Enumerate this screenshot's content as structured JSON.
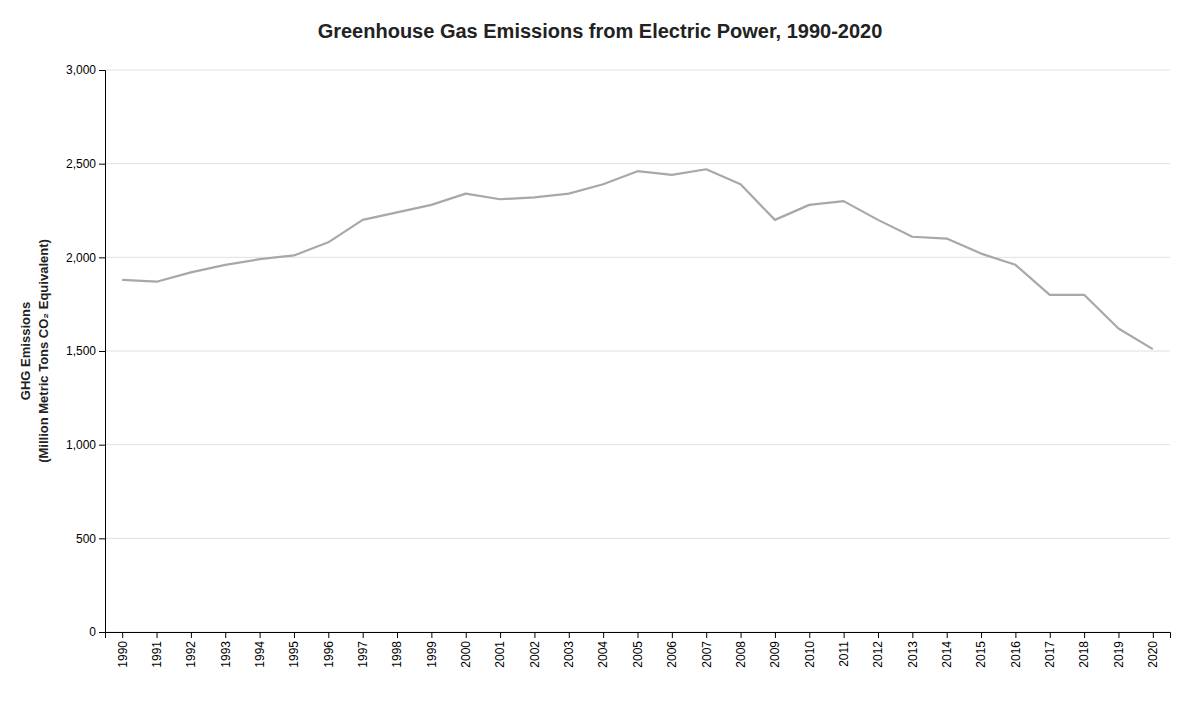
{
  "chart_data": {
    "type": "line",
    "title": "Greenhouse Gas Emissions from Electric Power, 1990-2020",
    "ylabel": [
      "GHG Emissions",
      "(Million Metric Tons CO₂ Equivalent)"
    ],
    "x": [
      1990,
      1991,
      1992,
      1993,
      1994,
      1995,
      1996,
      1997,
      1998,
      1999,
      2000,
      2001,
      2002,
      2003,
      2004,
      2005,
      2006,
      2007,
      2008,
      2009,
      2010,
      2011,
      2012,
      2013,
      2014,
      2015,
      2016,
      2017,
      2018,
      2019,
      2020
    ],
    "values": [
      1880,
      1870,
      1920,
      1960,
      1990,
      2010,
      2080,
      2200,
      2240,
      2280,
      2340,
      2310,
      2320,
      2340,
      2390,
      2460,
      2440,
      2470,
      2390,
      2200,
      2280,
      2300,
      2200,
      2110,
      2100,
      2020,
      1960,
      1800,
      1800,
      1620,
      1510
    ],
    "color": "#a8a8a8",
    "xlim": [
      1989.5,
      2020.5
    ],
    "xticks": [
      1990,
      1991,
      1992,
      1993,
      1994,
      1995,
      1996,
      1997,
      1998,
      1999,
      2000,
      2001,
      2002,
      2003,
      2004,
      2005,
      2006,
      2007,
      2008,
      2009,
      2010,
      2011,
      2012,
      2013,
      2014,
      2015,
      2016,
      2017,
      2018,
      2019,
      2020
    ],
    "ylim": [
      0,
      3000
    ],
    "yticks": [
      0,
      500,
      {
        "value": 1000,
        "label": "1,000"
      },
      {
        "value": 1500,
        "label": "1,500"
      },
      {
        "value": 2000,
        "label": "2,000"
      },
      {
        "value": 2500,
        "label": "2,500"
      },
      {
        "value": 3000,
        "label": "3,000"
      }
    ],
    "grid": true
  }
}
